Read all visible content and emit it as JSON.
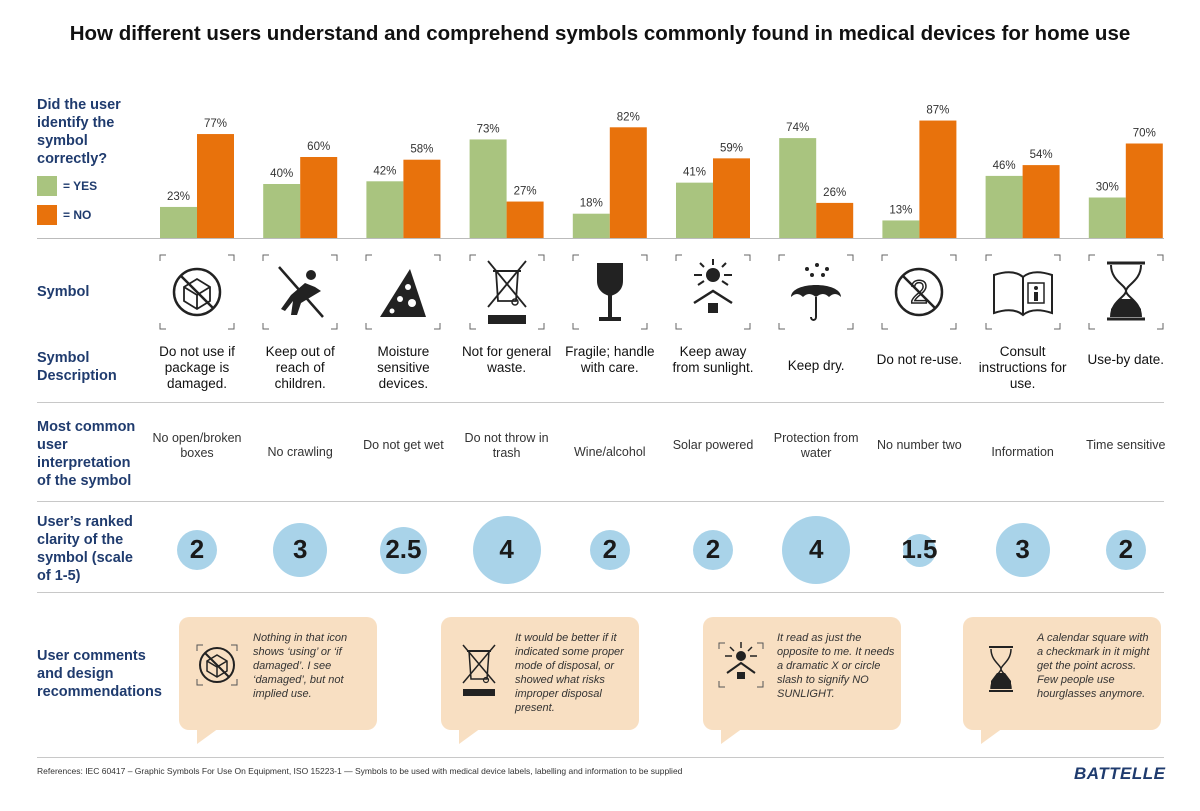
{
  "title": "How different users understand and comprehend symbols commonly found in medical devices for home use",
  "row_labels": {
    "identify": "Did the user identify the symbol correctly?",
    "symbol": "Symbol",
    "description": "Symbol Description",
    "interpretation": "Most common user interpretation of the symbol",
    "clarity": "User’s ranked clarity of the symbol (scale of 1-5)",
    "comments": "User comments and design recommendations"
  },
  "legend": {
    "yes": "= YES",
    "no": "= NO"
  },
  "colors": {
    "yes": "#a9c47f",
    "no": "#e8720c",
    "bubble": "#a9d3e9",
    "label": "#1f3b6e",
    "comment_bg": "#f8dfc2"
  },
  "chart_data": {
    "type": "bar",
    "categories": [
      "Do not use if package is damaged.",
      "Keep out of reach of children.",
      "Moisture sensitive devices.",
      "Not for general waste.",
      "Fragile; handle with care.",
      "Keep away from sunlight.",
      "Keep dry.",
      "Do not re-use.",
      "Consult instructions for use.",
      "Use-by date."
    ],
    "series": [
      {
        "name": "= YES",
        "values": [
          23,
          40,
          42,
          73,
          18,
          41,
          74,
          13,
          46,
          30
        ]
      },
      {
        "name": "= NO",
        "values": [
          77,
          60,
          58,
          27,
          82,
          59,
          26,
          87,
          54,
          70
        ]
      }
    ],
    "value_labels": [
      [
        "23%",
        "40%",
        "42%",
        "73%",
        "18%",
        "41%",
        "74%",
        "13%",
        "46%",
        "30%"
      ],
      [
        "77%",
        "60%",
        "58%",
        "27%",
        "82%",
        "59%",
        "26%",
        "87%",
        "54%",
        "70%"
      ]
    ],
    "ylim": [
      0,
      100
    ],
    "grid": false
  },
  "symbols": [
    {
      "icon": "damaged-package-icon",
      "description": "Do not use if package is damaged.",
      "interpretation": "No open/broken boxes",
      "clarity": 2,
      "clarity_label": "2"
    },
    {
      "icon": "keep-from-children-icon",
      "description": "Keep out of reach of children.",
      "interpretation": "No crawling",
      "clarity": 3,
      "clarity_label": "3"
    },
    {
      "icon": "moisture-sensitive-icon",
      "description": "Moisture sensitive devices.",
      "interpretation": "Do not get wet",
      "clarity": 2.5,
      "clarity_label": "2.5"
    },
    {
      "icon": "crossed-bin-icon",
      "description": "Not for general waste.",
      "interpretation": "Do not throw in trash",
      "clarity": 4,
      "clarity_label": "4"
    },
    {
      "icon": "fragile-glass-icon",
      "description": "Fragile; handle with care.",
      "interpretation": "Wine/alcohol",
      "clarity": 2,
      "clarity_label": "2"
    },
    {
      "icon": "sunlight-icon",
      "description": "Keep away from sunlight.",
      "interpretation": "Solar powered",
      "clarity": 2,
      "clarity_label": "2"
    },
    {
      "icon": "umbrella-icon",
      "description": "Keep dry.",
      "interpretation": "Protection from water",
      "clarity": 4,
      "clarity_label": "4"
    },
    {
      "icon": "do-not-reuse-icon",
      "description": "Do not re-use.",
      "interpretation": "No number two",
      "clarity": 1.5,
      "clarity_label": "1.5"
    },
    {
      "icon": "instructions-book-icon",
      "description": "Consult instructions for use.",
      "interpretation": "Information",
      "clarity": 3,
      "clarity_label": "3"
    },
    {
      "icon": "hourglass-icon",
      "description": "Use-by date.",
      "interpretation": "Time sensitive",
      "clarity": 2,
      "clarity_label": "2"
    }
  ],
  "comments": [
    {
      "icon": "damaged-package-icon",
      "text": "Nothing in that icon shows ‘using’ or ‘if damaged’. I see ‘damaged’, but not implied use."
    },
    {
      "icon": "crossed-bin-icon",
      "text": "It would be better if it indicated some proper mode of disposal, or showed what risks improper disposal present."
    },
    {
      "icon": "sunlight-icon",
      "text": "It read as just the opposite to me. It needs a dramatic X or circle slash to signify NO SUNLIGHT."
    },
    {
      "icon": "hourglass-icon",
      "text": "A calendar square with a checkmark in it might get the point across. Few people use hourglasses anymore."
    }
  ],
  "footer": "References: IEC 60417 – Graphic Symbols For Use On Equipment, ISO 15223-1 — Symbols to be used with medical device labels, labelling and information to be supplied",
  "logo": "BATTELLE"
}
